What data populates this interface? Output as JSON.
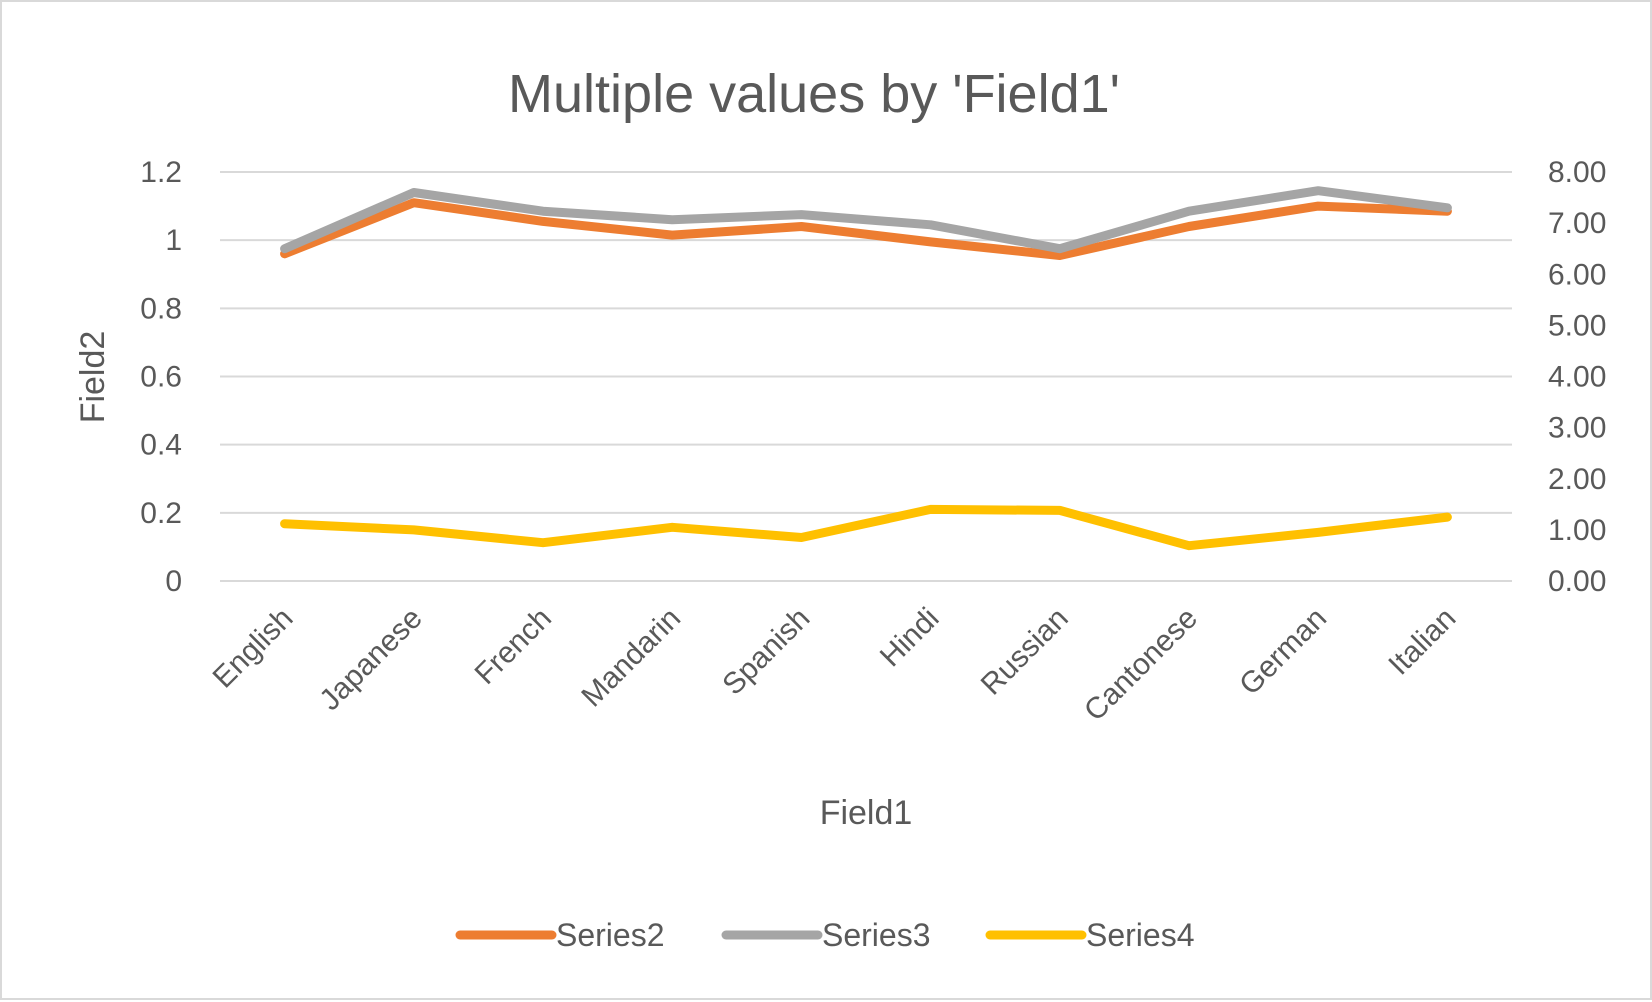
{
  "chart_data": {
    "type": "line",
    "title": "Multiple values by 'Field1'",
    "xlabel": "Field1",
    "ylabel": "Field2",
    "categories": [
      "English",
      "Japanese",
      "French",
      "Mandarin",
      "Spanish",
      "Hindi",
      "Russian",
      "Cantonese",
      "German",
      "Italian"
    ],
    "y_axis_left": {
      "min": 0,
      "max": 1.2,
      "ticks": [
        "0",
        "0.2",
        "0.4",
        "0.6",
        "0.8",
        "1",
        "1.2"
      ]
    },
    "y_axis_right": {
      "min": 0,
      "max": 8,
      "ticks": [
        "0.00",
        "1.00",
        "2.00",
        "3.00",
        "4.00",
        "5.00",
        "6.00",
        "7.00",
        "8.00"
      ]
    },
    "grid": true,
    "legend_position": "bottom",
    "series": [
      {
        "name": "Series2",
        "axis": "left",
        "color": "#ED7D31",
        "values": [
          0.96,
          1.11,
          1.055,
          1.015,
          1.04,
          0.995,
          0.955,
          1.04,
          1.1,
          1.085
        ]
      },
      {
        "name": "Series3",
        "axis": "left",
        "color": "#A5A5A5",
        "values": [
          0.975,
          1.14,
          1.085,
          1.06,
          1.075,
          1.045,
          0.975,
          1.085,
          1.145,
          1.095
        ]
      },
      {
        "name": "Series4",
        "axis": "right",
        "color": "#FFC000",
        "values": [
          1.12,
          1.0,
          0.75,
          1.05,
          0.85,
          1.4,
          1.38,
          0.69,
          0.95,
          1.25
        ]
      }
    ]
  }
}
